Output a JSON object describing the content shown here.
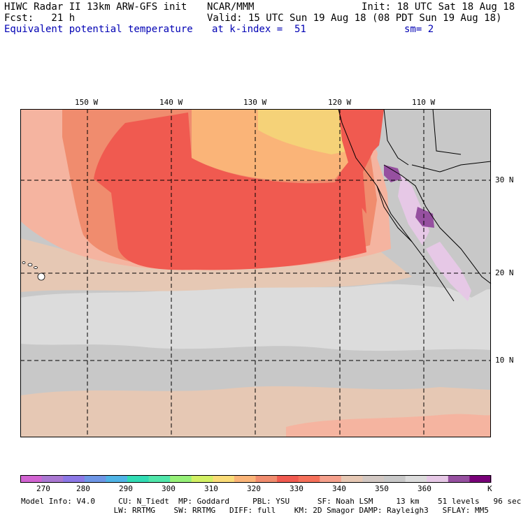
{
  "header": {
    "line1_left": "HIWC Radar II 13km ARW-GFS init",
    "line1_mid": "NCAR/MMM",
    "line1_right": "Init: 18 UTC Sat 18 Aug 18",
    "line2_left": "Fcst:   21 h",
    "line2_right": "Valid: 15 UTC Sun 19 Aug 18 (08 PDT Sun 19 Aug 18)",
    "line3_left": "Equivalent potential temperature",
    "line3_mid": "at k-index =  51",
    "line3_right": "sm= 2"
  },
  "map": {
    "longitudes": [
      "150 W",
      "140 W",
      "130 W",
      "120 W",
      "110 W"
    ],
    "latitudes": [
      "30 N",
      "20 N",
      "10 N"
    ],
    "colors": {
      "ocean_base": "#c8c8c8",
      "light": "#dcdcdc",
      "tan": "#e6c8b4",
      "peach": "#f5b4a0",
      "salmon": "#f08c6e",
      "red": "#f05a50",
      "orange": "#fab478",
      "yellow": "#f5d278",
      "purple": "#9650a0",
      "lavender": "#e6c8e6"
    }
  },
  "legend": {
    "colors": [
      "#d264d2",
      "#aa78d2",
      "#8c78e6",
      "#6e96e6",
      "#50b4e6",
      "#32dcb4",
      "#50e6aa",
      "#96f078",
      "#d2f064",
      "#fadc78",
      "#fab478",
      "#f08c6e",
      "#f05a50",
      "#f5705a",
      "#f5a08c",
      "#e6c8b4",
      "#d2c8c3",
      "#c8c8c8",
      "#dcdcdc",
      "#e6c8e6",
      "#9650a0",
      "#780078"
    ],
    "labels": [
      "270",
      "280",
      "290",
      "300",
      "310",
      "320",
      "330",
      "340",
      "350",
      "360"
    ],
    "unit": "K"
  },
  "footer": {
    "line1": "Model Info: V4.0     CU: N_Tiedt  MP: Goddard     PBL: YSU      SF: Noah LSM     13 km    51 levels   96 sec",
    "line2": "                    LW: RRTMG    SW: RRTMG   DIFF: full    KM: 2D Smagor DAMP: Rayleigh3   SFLAY: MM5"
  }
}
